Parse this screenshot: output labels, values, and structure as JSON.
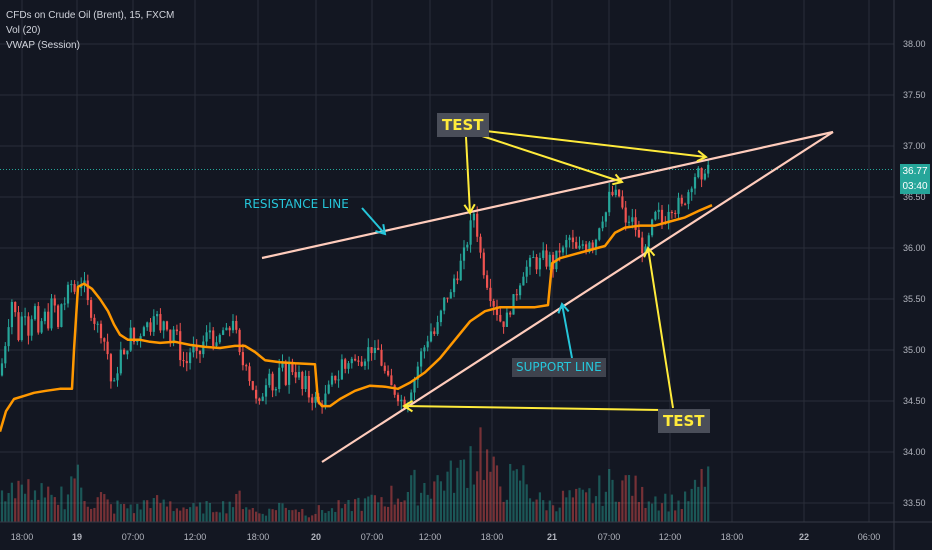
{
  "legend": {
    "symbol_line": "CFDs on Crude Oil (Brent), 15, FXCM",
    "volume_line": "Vol (20)",
    "vwap_line": "VWAP (Session)"
  },
  "price_tag": {
    "last_price": "36.77",
    "countdown": "03:40"
  },
  "annotations": {
    "test_top": "TEST",
    "test_bottom": "TEST",
    "resistance": "RESISTANCE LINE",
    "support": "SUPPORT LINE"
  },
  "colors": {
    "background": "#131722",
    "grid": "#2a2e39",
    "up": "#26a69a",
    "down": "#ef5350",
    "vwap": "#ff9800",
    "trendline": "#ffccbc",
    "arrow_yellow": "#ffeb3b",
    "arrow_cyan": "#26c6da"
  },
  "chart_data": {
    "type": "candlestick",
    "title": "CFDs on Crude Oil (Brent), 15, FXCM",
    "x_ticks": [
      "18:00",
      "19",
      "07:00",
      "12:00",
      "18:00",
      "20",
      "07:00",
      "12:00",
      "18:00",
      "21",
      "07:00",
      "12:00",
      "18:00",
      "22",
      "06:00"
    ],
    "y_ticks": [
      "38.00",
      "37.50",
      "37.00",
      "36.50",
      "36.00",
      "35.50",
      "35.00",
      "34.50",
      "34.00",
      "33.50"
    ],
    "ylim": [
      33.4,
      38.2
    ],
    "grid": true,
    "last_price": 36.77,
    "price_path": [
      [
        0,
        34.75
      ],
      [
        5,
        35.05
      ],
      [
        9,
        35.3
      ],
      [
        13,
        35.55
      ],
      [
        18,
        35.1
      ],
      [
        24,
        35.45
      ],
      [
        29,
        35.15
      ],
      [
        34,
        35.5
      ],
      [
        39,
        35.05
      ],
      [
        43,
        35.4
      ],
      [
        48,
        35.25
      ],
      [
        53,
        35.55
      ],
      [
        58,
        35.2
      ],
      [
        62,
        35.5
      ],
      [
        66,
        35.45
      ],
      [
        70,
        35.72
      ],
      [
        73,
        35.55
      ],
      [
        76,
        35.6
      ],
      [
        80,
        35.68
      ],
      [
        84,
        35.65
      ],
      [
        88,
        35.45
      ],
      [
        92,
        35.35
      ],
      [
        96,
        35.25
      ],
      [
        100,
        35.2
      ],
      [
        104,
        35.1
      ],
      [
        108,
        34.95
      ],
      [
        112,
        34.6
      ],
      [
        116,
        34.7
      ],
      [
        120,
        35.0
      ],
      [
        125,
        34.9
      ],
      [
        130,
        35.2
      ],
      [
        135,
        35.05
      ],
      [
        140,
        35.15
      ],
      [
        145,
        35.3
      ],
      [
        150,
        35.2
      ],
      [
        155,
        35.45
      ],
      [
        160,
        35.15
      ],
      [
        165,
        35.35
      ],
      [
        170,
        35.1
      ],
      [
        175,
        35.25
      ],
      [
        180,
        34.95
      ],
      [
        186,
        34.85
      ],
      [
        192,
        35.05
      ],
      [
        198,
        34.9
      ],
      [
        204,
        35.1
      ],
      [
        210,
        35.2
      ],
      [
        216,
        35.0
      ],
      [
        222,
        35.2
      ],
      [
        228,
        35.15
      ],
      [
        234,
        35.35
      ],
      [
        238,
        35.0
      ],
      [
        242,
        34.85
      ],
      [
        246,
        34.9
      ],
      [
        250,
        34.7
      ],
      [
        254,
        34.6
      ],
      [
        258,
        34.4
      ],
      [
        262,
        34.55
      ],
      [
        266,
        34.7
      ],
      [
        270,
        34.85
      ],
      [
        274,
        34.5
      ],
      [
        278,
        34.75
      ],
      [
        282,
        34.85
      ],
      [
        286,
        34.7
      ],
      [
        290,
        34.9
      ],
      [
        294,
        34.75
      ],
      [
        298,
        34.8
      ],
      [
        302,
        34.6
      ],
      [
        306,
        34.7
      ],
      [
        310,
        34.5
      ],
      [
        314,
        34.55
      ],
      [
        318,
        34.45
      ],
      [
        322,
        34.5
      ],
      [
        326,
        34.55
      ],
      [
        330,
        34.65
      ],
      [
        334,
        34.75
      ],
      [
        338,
        34.7
      ],
      [
        342,
        34.9
      ],
      [
        346,
        34.8
      ],
      [
        350,
        34.95
      ],
      [
        354,
        34.85
      ],
      [
        358,
        34.95
      ],
      [
        362,
        34.9
      ],
      [
        366,
        34.95
      ],
      [
        370,
        35.05
      ],
      [
        374,
        34.95
      ],
      [
        378,
        35.0
      ],
      [
        382,
        34.85
      ],
      [
        386,
        34.75
      ],
      [
        390,
        34.65
      ],
      [
        394,
        34.6
      ],
      [
        398,
        34.55
      ],
      [
        402,
        34.5
      ],
      [
        406,
        34.45
      ],
      [
        410,
        34.6
      ],
      [
        414,
        34.7
      ],
      [
        418,
        34.85
      ],
      [
        422,
        35.0
      ],
      [
        426,
        35.05
      ],
      [
        430,
        35.2
      ],
      [
        434,
        35.15
      ],
      [
        438,
        35.25
      ],
      [
        442,
        35.4
      ],
      [
        446,
        35.55
      ],
      [
        450,
        35.5
      ],
      [
        454,
        35.7
      ],
      [
        458,
        35.75
      ],
      [
        462,
        35.9
      ],
      [
        466,
        36.0
      ],
      [
        470,
        36.2
      ],
      [
        474,
        36.35
      ],
      [
        478,
        36.1
      ],
      [
        482,
        35.85
      ],
      [
        486,
        35.7
      ],
      [
        490,
        35.55
      ],
      [
        494,
        35.45
      ],
      [
        498,
        35.35
      ],
      [
        502,
        35.25
      ],
      [
        506,
        35.3
      ],
      [
        510,
        35.4
      ],
      [
        514,
        35.5
      ],
      [
        518,
        35.6
      ],
      [
        522,
        35.75
      ],
      [
        526,
        35.8
      ],
      [
        530,
        35.85
      ],
      [
        534,
        35.9
      ],
      [
        538,
        35.8
      ],
      [
        542,
        35.95
      ],
      [
        546,
        35.85
      ],
      [
        550,
        35.9
      ],
      [
        554,
        35.8
      ],
      [
        558,
        36.0
      ],
      [
        562,
        35.95
      ],
      [
        566,
        36.05
      ],
      [
        570,
        36.1
      ],
      [
        574,
        36.0
      ],
      [
        578,
        35.95
      ],
      [
        582,
        36.05
      ],
      [
        586,
        36.0
      ],
      [
        590,
        36.1
      ],
      [
        594,
        36.0
      ],
      [
        598,
        36.2
      ],
      [
        602,
        36.3
      ],
      [
        606,
        36.35
      ],
      [
        610,
        36.55
      ],
      [
        614,
        36.5
      ],
      [
        618,
        36.55
      ],
      [
        622,
        36.4
      ],
      [
        626,
        36.2
      ],
      [
        630,
        36.3
      ],
      [
        634,
        36.25
      ],
      [
        638,
        36.1
      ],
      [
        642,
        36.0
      ],
      [
        646,
        35.95
      ],
      [
        650,
        36.15
      ],
      [
        654,
        36.3
      ],
      [
        658,
        36.35
      ],
      [
        662,
        36.25
      ],
      [
        666,
        36.3
      ],
      [
        670,
        36.45
      ],
      [
        674,
        36.35
      ],
      [
        678,
        36.45
      ],
      [
        682,
        36.4
      ],
      [
        686,
        36.5
      ],
      [
        690,
        36.6
      ],
      [
        694,
        36.7
      ],
      [
        698,
        36.75
      ],
      [
        702,
        36.6
      ],
      [
        706,
        36.85
      ],
      [
        710,
        36.77
      ]
    ],
    "vwap": [
      [
        0,
        34.2
      ],
      [
        6,
        34.4
      ],
      [
        14,
        34.52
      ],
      [
        24,
        34.55
      ],
      [
        34,
        34.58
      ],
      [
        46,
        34.6
      ],
      [
        60,
        34.62
      ],
      [
        72,
        34.62
      ],
      [
        74,
        35.0
      ],
      [
        78,
        35.62
      ],
      [
        84,
        35.65
      ],
      [
        92,
        35.6
      ],
      [
        100,
        35.5
      ],
      [
        108,
        35.38
      ],
      [
        114,
        35.25
      ],
      [
        120,
        35.15
      ],
      [
        128,
        35.1
      ],
      [
        140,
        35.1
      ],
      [
        150,
        35.08
      ],
      [
        160,
        35.07
      ],
      [
        175,
        35.08
      ],
      [
        190,
        35.05
      ],
      [
        205,
        35.03
      ],
      [
        220,
        35.02
      ],
      [
        235,
        35.04
      ],
      [
        245,
        35.04
      ],
      [
        255,
        34.98
      ],
      [
        265,
        34.9
      ],
      [
        280,
        34.88
      ],
      [
        295,
        34.87
      ],
      [
        315,
        34.86
      ],
      [
        318,
        34.5
      ],
      [
        322,
        34.45
      ],
      [
        330,
        34.45
      ],
      [
        340,
        34.52
      ],
      [
        355,
        34.6
      ],
      [
        370,
        34.65
      ],
      [
        385,
        34.64
      ],
      [
        398,
        34.62
      ],
      [
        410,
        34.68
      ],
      [
        425,
        34.78
      ],
      [
        440,
        34.92
      ],
      [
        455,
        35.1
      ],
      [
        470,
        35.28
      ],
      [
        485,
        35.38
      ],
      [
        500,
        35.42
      ],
      [
        520,
        35.42
      ],
      [
        535,
        35.42
      ],
      [
        548,
        35.44
      ],
      [
        552,
        35.85
      ],
      [
        560,
        35.9
      ],
      [
        575,
        35.94
      ],
      [
        590,
        35.98
      ],
      [
        605,
        36.02
      ],
      [
        615,
        36.15
      ],
      [
        625,
        36.2
      ],
      [
        640,
        36.22
      ],
      [
        655,
        36.22
      ],
      [
        670,
        36.26
      ],
      [
        685,
        36.3
      ],
      [
        700,
        36.37
      ],
      [
        712,
        36.42
      ]
    ],
    "volume": [
      [
        0,
        0.2
      ],
      [
        5,
        0.35
      ],
      [
        10,
        0.55
      ],
      [
        15,
        0.3
      ],
      [
        20,
        0.4
      ],
      [
        25,
        0.25
      ],
      [
        30,
        0.5
      ],
      [
        35,
        0.3
      ],
      [
        40,
        0.35
      ],
      [
        45,
        0.25
      ],
      [
        50,
        0.3
      ],
      [
        55,
        0.2
      ],
      [
        60,
        0.35
      ],
      [
        65,
        0.28
      ],
      [
        70,
        0.45
      ],
      [
        75,
        0.62
      ],
      [
        80,
        0.4
      ],
      [
        85,
        0.3
      ],
      [
        90,
        0.25
      ],
      [
        95,
        0.2
      ],
      [
        100,
        0.3
      ],
      [
        105,
        0.25
      ],
      [
        110,
        0.18
      ],
      [
        115,
        0.15
      ],
      [
        120,
        0.22
      ],
      [
        125,
        0.15
      ],
      [
        130,
        0.2
      ],
      [
        135,
        0.14
      ],
      [
        140,
        0.18
      ],
      [
        145,
        0.22
      ],
      [
        150,
        0.28
      ],
      [
        155,
        0.2
      ],
      [
        160,
        0.25
      ],
      [
        165,
        0.18
      ],
      [
        170,
        0.22
      ],
      [
        175,
        0.15
      ],
      [
        180,
        0.2
      ],
      [
        185,
        0.16
      ],
      [
        190,
        0.18
      ],
      [
        195,
        0.14
      ],
      [
        200,
        0.16
      ],
      [
        205,
        0.2
      ],
      [
        210,
        0.15
      ],
      [
        215,
        0.18
      ],
      [
        220,
        0.22
      ],
      [
        225,
        0.17
      ],
      [
        230,
        0.25
      ],
      [
        235,
        0.2
      ],
      [
        240,
        0.3
      ],
      [
        245,
        0.22
      ],
      [
        250,
        0.18
      ],
      [
        255,
        0.12
      ],
      [
        260,
        0.1
      ],
      [
        265,
        0.14
      ],
      [
        270,
        0.12
      ],
      [
        275,
        0.18
      ],
      [
        280,
        0.22
      ],
      [
        285,
        0.15
      ],
      [
        290,
        0.2
      ],
      [
        295,
        0.17
      ],
      [
        300,
        0.15
      ],
      [
        305,
        0.12
      ],
      [
        310,
        0.1
      ],
      [
        315,
        0.12
      ],
      [
        320,
        0.14
      ],
      [
        325,
        0.16
      ],
      [
        330,
        0.12
      ],
      [
        335,
        0.15
      ],
      [
        340,
        0.18
      ],
      [
        345,
        0.14
      ],
      [
        350,
        0.2
      ],
      [
        355,
        0.22
      ],
      [
        360,
        0.25
      ],
      [
        365,
        0.2
      ],
      [
        370,
        0.28
      ],
      [
        375,
        0.22
      ],
      [
        380,
        0.3
      ],
      [
        385,
        0.25
      ],
      [
        390,
        0.32
      ],
      [
        395,
        0.28
      ],
      [
        400,
        0.35
      ],
      [
        405,
        0.3
      ],
      [
        410,
        0.38
      ],
      [
        415,
        0.42
      ],
      [
        420,
        0.35
      ],
      [
        425,
        0.45
      ],
      [
        430,
        0.4
      ],
      [
        435,
        0.5
      ],
      [
        440,
        0.45
      ],
      [
        445,
        0.55
      ],
      [
        450,
        0.48
      ],
      [
        455,
        0.6
      ],
      [
        460,
        0.52
      ],
      [
        465,
        0.7
      ],
      [
        470,
        0.82
      ],
      [
        475,
        0.65
      ],
      [
        480,
        0.95
      ],
      [
        485,
        0.75
      ],
      [
        490,
        0.6
      ],
      [
        495,
        0.5
      ],
      [
        500,
        0.45
      ],
      [
        505,
        0.4
      ],
      [
        510,
        0.48
      ],
      [
        515,
        0.42
      ],
      [
        520,
        0.55
      ],
      [
        525,
        0.5
      ],
      [
        530,
        0.38
      ],
      [
        535,
        0.3
      ],
      [
        540,
        0.25
      ],
      [
        545,
        0.22
      ],
      [
        550,
        0.2
      ],
      [
        555,
        0.25
      ],
      [
        560,
        0.22
      ],
      [
        565,
        0.3
      ],
      [
        570,
        0.28
      ],
      [
        575,
        0.26
      ],
      [
        580,
        0.3
      ],
      [
        585,
        0.25
      ],
      [
        590,
        0.32
      ],
      [
        595,
        0.28
      ],
      [
        600,
        0.38
      ],
      [
        605,
        0.35
      ],
      [
        610,
        0.45
      ],
      [
        615,
        0.4
      ],
      [
        620,
        0.48
      ],
      [
        625,
        0.42
      ],
      [
        630,
        0.5
      ],
      [
        635,
        0.38
      ],
      [
        640,
        0.3
      ],
      [
        645,
        0.28
      ],
      [
        650,
        0.35
      ],
      [
        655,
        0.3
      ],
      [
        660,
        0.25
      ],
      [
        665,
        0.28
      ],
      [
        670,
        0.22
      ],
      [
        675,
        0.25
      ],
      [
        680,
        0.2
      ],
      [
        685,
        0.24
      ],
      [
        690,
        0.3
      ],
      [
        695,
        0.35
      ],
      [
        700,
        0.42
      ],
      [
        705,
        0.55
      ],
      [
        710,
        0.62
      ]
    ]
  }
}
